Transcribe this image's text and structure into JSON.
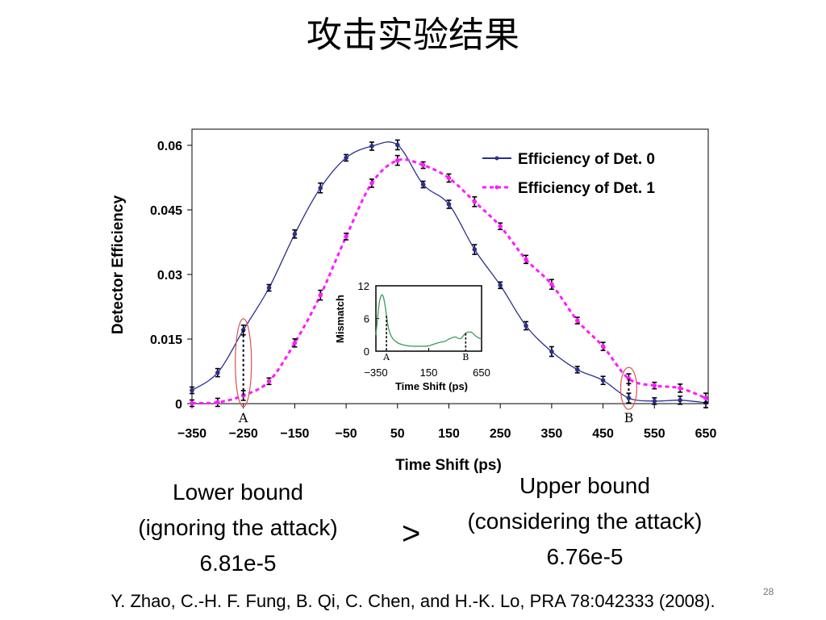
{
  "slide": {
    "title": "攻击实验结果",
    "lower": {
      "line1": "Lower bound",
      "line2": "(ignoring the attack)",
      "value": "6.81e-5"
    },
    "comparator": ">",
    "upper": {
      "line1": "Upper bound",
      "line2": "(considering the attack)",
      "value": "6.76e-5"
    },
    "citation": "Y. Zhao, C.-H. F. Fung, B. Qi, C. Chen, and H.-K. Lo, PRA 78:042333 (2008).",
    "page_number": "28"
  },
  "chart_data": [
    {
      "type": "line",
      "xlabel": "Time Shift (ps)",
      "ylabel": "Detector Efficiency",
      "xlim": [
        -350,
        650
      ],
      "ylim": [
        0,
        0.06
      ],
      "x_ticks": [
        "−350",
        "−250",
        "−150",
        "−50",
        "50",
        "150",
        "250",
        "350",
        "450",
        "550",
        "650"
      ],
      "y_ticks": [
        "0",
        "0.015",
        "0.03",
        "0.045",
        "0.06"
      ],
      "legend_position": "top-right",
      "grid": false,
      "markers": [
        {
          "label": "A",
          "x": -250
        },
        {
          "label": "B",
          "x": 500
        }
      ],
      "series": [
        {
          "name": "Efficiency of Det. 0",
          "color": "#2b2f8f",
          "style": "solid",
          "x": [
            -350,
            -300,
            -250,
            -200,
            -150,
            -100,
            -50,
            0,
            50,
            100,
            150,
            200,
            250,
            300,
            350,
            400,
            450,
            500,
            550,
            600,
            650
          ],
          "y": [
            0.0031,
            0.0072,
            0.0171,
            0.0269,
            0.0394,
            0.0501,
            0.0571,
            0.0598,
            0.0601,
            0.0509,
            0.0463,
            0.0358,
            0.0275,
            0.0181,
            0.0121,
            0.0079,
            0.0054,
            0.0013,
            0.0006,
            0.0008,
            0.0002
          ]
        },
        {
          "name": "Efficiency of Det. 1",
          "color": "#ff1aff",
          "style": "dashed",
          "x": [
            -350,
            -300,
            -250,
            -200,
            -150,
            -100,
            -50,
            0,
            50,
            100,
            150,
            200,
            250,
            300,
            350,
            400,
            450,
            500,
            550,
            600,
            650
          ],
          "y": [
            0.0001,
            0.0003,
            0.0019,
            0.0052,
            0.0141,
            0.0252,
            0.0388,
            0.0512,
            0.0565,
            0.0554,
            0.0524,
            0.0469,
            0.0412,
            0.0335,
            0.0277,
            0.0193,
            0.0133,
            0.0058,
            0.0042,
            0.0036,
            0.0013
          ]
        }
      ]
    },
    {
      "type": "line",
      "xlabel": "Time Shift (ps)",
      "ylabel": "Mismatch",
      "xlim": [
        -350,
        650
      ],
      "ylim": [
        0,
        12
      ],
      "x_ticks": [
        "−350",
        "150",
        "650"
      ],
      "y_ticks": [
        "0",
        "6",
        "12"
      ],
      "markers": [
        {
          "label": "A",
          "x": -250
        },
        {
          "label": "B",
          "x": 500
        }
      ],
      "series": [
        {
          "color": "#3d9a5a",
          "x": [
            -350,
            -320,
            -300,
            -280,
            -260,
            -250,
            -230,
            -200,
            -150,
            -100,
            -50,
            0,
            50,
            100,
            150,
            200,
            250,
            300,
            350,
            400,
            450,
            500,
            550,
            600,
            650
          ],
          "y": [
            3.0,
            8.5,
            10.2,
            10.0,
            8.0,
            6.5,
            4.2,
            2.6,
            1.6,
            1.2,
            1.0,
            0.9,
            0.9,
            0.9,
            1.0,
            1.3,
            1.6,
            1.8,
            2.3,
            2.6,
            2.3,
            3.3,
            3.5,
            2.7,
            2.2
          ]
        }
      ]
    }
  ]
}
